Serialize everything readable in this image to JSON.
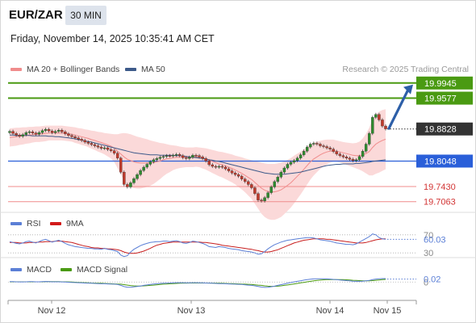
{
  "header": {
    "symbol": "EUR/ZAR",
    "timeframe": "30 MIN",
    "datetime": "Friday, November 14, 2025 10:35:41 AM CET"
  },
  "legend": {
    "ma20_bb": "MA 20 + Bollinger Bands",
    "ma50": "MA 50",
    "research": "Research © 2025 Trading Central",
    "rsi": "RSI",
    "rsi_ma": "9MA",
    "macd": "MACD",
    "macd_signal": "MACD Signal"
  },
  "colors": {
    "green": "#4a9a12",
    "blue": "#2a5fd9",
    "salmon": "#f08c8c",
    "band": "#fbd9d9",
    "ma50": "#3d5a8a",
    "candle_up": "#2e8b2e",
    "candle_down": "#c0392b",
    "current": "#333333",
    "arrow": "#2d5fa8"
  },
  "chart_data": [
    {
      "type": "candlestick",
      "title": "EUR/ZAR 30 MIN",
      "x_ticks": [
        "Nov 12",
        "Nov 13",
        "Nov 14",
        "Nov 15"
      ],
      "ylim": [
        19.69,
        20.0
      ],
      "current_price": "19.8828",
      "levels": [
        {
          "label": "19.9945",
          "value": 19.9945,
          "kind": "resistance"
        },
        {
          "label": "19.9577",
          "value": 19.9577,
          "kind": "resistance"
        },
        {
          "label": "19.8048",
          "value": 19.8048,
          "kind": "pivot"
        },
        {
          "label": "19.7430",
          "value": 19.743,
          "kind": "support"
        },
        {
          "label": "19.7063",
          "value": 19.7063,
          "kind": "support"
        }
      ],
      "close": [
        19.877,
        19.872,
        19.868,
        19.865,
        19.869,
        19.874,
        19.876,
        19.873,
        19.87,
        19.874,
        19.879,
        19.882,
        19.878,
        19.874,
        19.877,
        19.88,
        19.876,
        19.871,
        19.867,
        19.864,
        19.861,
        19.858,
        19.855,
        19.851,
        19.848,
        19.845,
        19.842,
        19.839,
        19.836,
        19.837,
        19.833,
        19.83,
        19.824,
        19.812,
        19.778,
        19.748,
        19.742,
        19.752,
        19.762,
        19.772,
        19.782,
        19.79,
        19.797,
        19.803,
        19.808,
        19.811,
        19.814,
        19.816,
        19.818,
        19.817,
        19.819,
        19.821,
        19.818,
        19.813,
        19.811,
        19.814,
        19.819,
        19.818,
        19.815,
        19.811,
        19.805,
        19.796,
        19.792,
        19.79,
        19.792,
        19.79,
        19.786,
        19.781,
        19.776,
        19.772,
        19.768,
        19.761,
        19.755,
        19.748,
        19.74,
        19.726,
        19.71,
        19.708,
        19.716,
        19.728,
        19.742,
        19.755,
        19.766,
        19.778,
        19.788,
        19.797,
        19.802,
        19.806,
        19.812,
        19.82,
        19.829,
        19.839,
        19.846,
        19.848,
        19.846,
        19.842,
        19.84,
        19.837,
        19.834,
        19.828,
        19.822,
        19.818,
        19.815,
        19.812,
        19.809,
        19.806,
        19.808,
        19.816,
        19.829,
        19.846,
        19.872,
        19.911,
        19.918,
        19.905,
        19.89,
        19.883
      ],
      "ma20": [
        19.862,
        19.863,
        19.864,
        19.865,
        19.866,
        19.867,
        19.868,
        19.869,
        19.87,
        19.87,
        19.871,
        19.872,
        19.873,
        19.873,
        19.873,
        19.873,
        19.873,
        19.872,
        19.871,
        19.87,
        19.868,
        19.866,
        19.864,
        19.862,
        19.86,
        19.857,
        19.855,
        19.852,
        19.85,
        19.847,
        19.844,
        19.841,
        19.836,
        19.829,
        19.822,
        19.815,
        19.809,
        19.806,
        19.803,
        19.801,
        19.8,
        19.8,
        19.8,
        19.8,
        19.801,
        19.803,
        19.805,
        19.808,
        19.81,
        19.811,
        19.813,
        19.814,
        19.814,
        19.814,
        19.814,
        19.814,
        19.814,
        19.815,
        19.814,
        19.812,
        19.81,
        19.807,
        19.804,
        19.801,
        19.798,
        19.796,
        19.793,
        19.79,
        19.787,
        19.783,
        19.779,
        19.775,
        19.77,
        19.765,
        19.76,
        19.753,
        19.746,
        19.739,
        19.734,
        19.731,
        19.73,
        19.73,
        19.732,
        19.735,
        19.74,
        19.746,
        19.752,
        19.76,
        19.768,
        19.776,
        19.785,
        19.794,
        19.803,
        19.81,
        19.815,
        19.82,
        19.824,
        19.827,
        19.829,
        19.83,
        19.829,
        19.827,
        19.825,
        19.823,
        19.821,
        19.819,
        19.818,
        19.818,
        19.82,
        19.823,
        19.828,
        19.838,
        19.846,
        19.851,
        19.855,
        19.858
      ],
      "ma50": [
        19.868,
        19.868,
        19.867,
        19.867,
        19.867,
        19.867,
        19.867,
        19.866,
        19.866,
        19.866,
        19.866,
        19.866,
        19.865,
        19.865,
        19.864,
        19.864,
        19.863,
        19.862,
        19.861,
        19.86,
        19.859,
        19.857,
        19.856,
        19.854,
        19.852,
        19.851,
        19.849,
        19.847,
        19.845,
        19.843,
        19.841,
        19.839,
        19.837,
        19.835,
        19.833,
        19.831,
        19.829,
        19.827,
        19.825,
        19.824,
        19.823,
        19.822,
        19.821,
        19.82,
        19.82,
        19.82,
        19.819,
        19.819,
        19.819,
        19.819,
        19.819,
        19.818,
        19.818,
        19.817,
        19.816,
        19.815,
        19.814,
        19.813,
        19.812,
        19.811,
        19.81,
        19.808,
        19.807,
        19.805,
        19.804,
        19.802,
        19.8,
        19.798,
        19.796,
        19.794,
        19.792,
        19.79,
        19.788,
        19.786,
        19.784,
        19.782,
        19.78,
        19.778,
        19.776,
        19.775,
        19.774,
        19.773,
        19.773,
        19.773,
        19.773,
        19.774,
        19.775,
        19.776,
        19.777,
        19.778,
        19.78,
        19.782,
        19.784,
        19.786,
        19.788,
        19.79,
        19.792,
        19.794,
        19.795,
        19.796,
        19.797,
        19.797,
        19.798,
        19.798,
        19.798,
        19.798,
        19.799,
        19.799,
        19.8,
        19.801,
        19.802,
        19.804,
        19.805,
        19.806,
        19.807,
        19.808
      ],
      "bb_width": [
        0.022,
        0.022,
        0.022,
        0.021,
        0.021,
        0.02,
        0.02,
        0.019,
        0.019,
        0.019,
        0.019,
        0.019,
        0.018,
        0.018,
        0.018,
        0.018,
        0.018,
        0.018,
        0.018,
        0.018,
        0.019,
        0.019,
        0.02,
        0.02,
        0.021,
        0.022,
        0.023,
        0.024,
        0.025,
        0.026,
        0.028,
        0.03,
        0.034,
        0.041,
        0.05,
        0.058,
        0.063,
        0.064,
        0.064,
        0.063,
        0.062,
        0.06,
        0.058,
        0.055,
        0.052,
        0.048,
        0.044,
        0.04,
        0.036,
        0.033,
        0.03,
        0.028,
        0.026,
        0.025,
        0.024,
        0.024,
        0.024,
        0.024,
        0.024,
        0.025,
        0.026,
        0.027,
        0.028,
        0.029,
        0.03,
        0.031,
        0.032,
        0.033,
        0.034,
        0.035,
        0.037,
        0.039,
        0.041,
        0.044,
        0.047,
        0.052,
        0.057,
        0.062,
        0.065,
        0.067,
        0.068,
        0.068,
        0.067,
        0.066,
        0.064,
        0.062,
        0.06,
        0.058,
        0.055,
        0.052,
        0.049,
        0.046,
        0.043,
        0.04,
        0.037,
        0.034,
        0.032,
        0.03,
        0.028,
        0.027,
        0.026,
        0.026,
        0.026,
        0.027,
        0.028,
        0.029,
        0.031,
        0.034,
        0.04,
        0.048,
        0.058,
        0.068,
        0.072,
        0.074,
        0.074,
        0.073
      ],
      "forecast_target": 19.9945
    },
    {
      "type": "line",
      "title": "RSI",
      "ylim": [
        25,
        75
      ],
      "ticks": [
        {
          "label": "70",
          "value": 70
        },
        {
          "label": "30",
          "value": 30
        }
      ],
      "current_label": "60.03",
      "current_value": 60.03,
      "series": [
        {
          "name": "RSI",
          "values": [
            55,
            53,
            51,
            50,
            52,
            55,
            56,
            54,
            52,
            55,
            58,
            60,
            57,
            54,
            56,
            58,
            55,
            51,
            48,
            46,
            44,
            43,
            42,
            41,
            40,
            40,
            39,
            39,
            38,
            40,
            38,
            37,
            35,
            33,
            25,
            22,
            24,
            32,
            38,
            42,
            46,
            49,
            51,
            53,
            54,
            55,
            55,
            56,
            56,
            55,
            56,
            57,
            55,
            52,
            51,
            53,
            56,
            55,
            53,
            51,
            48,
            44,
            43,
            42,
            44,
            43,
            42,
            40,
            39,
            38,
            37,
            35,
            34,
            33,
            32,
            30,
            27,
            28,
            33,
            39,
            44,
            48,
            51,
            54,
            56,
            58,
            59,
            60,
            61,
            62,
            63,
            64,
            64,
            63,
            61,
            59,
            58,
            57,
            56,
            54,
            52,
            51,
            50,
            49,
            49,
            48,
            50,
            54,
            58,
            62,
            66,
            72,
            70,
            64,
            61,
            60
          ]
        },
        {
          "name": "9MA",
          "values": [
            53,
            53,
            53,
            52,
            52,
            52,
            53,
            53,
            53,
            54,
            54,
            55,
            55,
            55,
            56,
            56,
            56,
            55,
            54,
            53,
            51,
            49,
            47,
            45,
            44,
            42,
            41,
            41,
            40,
            40,
            39,
            39,
            38,
            37,
            35,
            32,
            30,
            29,
            29,
            30,
            32,
            34,
            37,
            40,
            44,
            47,
            49,
            51,
            52,
            53,
            54,
            54,
            54,
            54,
            54,
            54,
            54,
            54,
            54,
            53,
            53,
            52,
            51,
            50,
            49,
            47,
            46,
            45,
            44,
            43,
            42,
            41,
            40,
            39,
            38,
            36,
            35,
            33,
            32,
            32,
            33,
            35,
            37,
            40,
            43,
            46,
            49,
            52,
            54,
            56,
            58,
            59,
            60,
            61,
            61,
            61,
            61,
            60,
            60,
            59,
            58,
            57,
            56,
            55,
            54,
            53,
            52,
            52,
            52,
            53,
            55,
            57,
            59,
            60,
            61,
            61
          ]
        }
      ]
    },
    {
      "type": "line",
      "title": "MACD",
      "ylim": [
        -0.1,
        0.05
      ],
      "ticks": [
        {
          "label": "0",
          "value": 0
        }
      ],
      "current_label": "0.02",
      "current_value": 0.02,
      "series": [
        {
          "name": "MACD",
          "values": [
            0.003,
            0.003,
            0.002,
            0.001,
            0.001,
            0.002,
            0.003,
            0.003,
            0.002,
            0.002,
            0.003,
            0.004,
            0.003,
            0.002,
            0.002,
            0.002,
            0.001,
            0.0,
            -0.001,
            -0.002,
            -0.003,
            -0.004,
            -0.005,
            -0.006,
            -0.007,
            -0.008,
            -0.009,
            -0.01,
            -0.011,
            -0.011,
            -0.012,
            -0.013,
            -0.014,
            -0.016,
            -0.022,
            -0.03,
            -0.034,
            -0.034,
            -0.032,
            -0.029,
            -0.026,
            -0.022,
            -0.019,
            -0.016,
            -0.013,
            -0.011,
            -0.009,
            -0.008,
            -0.007,
            -0.006,
            -0.005,
            -0.004,
            -0.004,
            -0.004,
            -0.005,
            -0.005,
            -0.004,
            -0.004,
            -0.005,
            -0.005,
            -0.006,
            -0.007,
            -0.008,
            -0.009,
            -0.01,
            -0.01,
            -0.011,
            -0.012,
            -0.013,
            -0.014,
            -0.015,
            -0.016,
            -0.018,
            -0.02,
            -0.022,
            -0.025,
            -0.029,
            -0.033,
            -0.035,
            -0.034,
            -0.031,
            -0.027,
            -0.022,
            -0.017,
            -0.012,
            -0.007,
            -0.003,
            0.001,
            0.005,
            0.009,
            0.013,
            0.016,
            0.019,
            0.021,
            0.022,
            0.022,
            0.022,
            0.021,
            0.02,
            0.018,
            0.016,
            0.014,
            0.012,
            0.01,
            0.008,
            0.006,
            0.005,
            0.005,
            0.006,
            0.008,
            0.011,
            0.016,
            0.02,
            0.022,
            0.023,
            0.023
          ]
        },
        {
          "name": "MACD Signal",
          "values": [
            0.002,
            0.002,
            0.002,
            0.002,
            0.002,
            0.002,
            0.002,
            0.002,
            0.002,
            0.002,
            0.002,
            0.003,
            0.003,
            0.003,
            0.003,
            0.003,
            0.002,
            0.002,
            0.001,
            0.0,
            -0.001,
            -0.002,
            -0.003,
            -0.004,
            -0.005,
            -0.006,
            -0.007,
            -0.008,
            -0.008,
            -0.009,
            -0.01,
            -0.011,
            -0.012,
            -0.013,
            -0.014,
            -0.017,
            -0.02,
            -0.023,
            -0.025,
            -0.026,
            -0.026,
            -0.025,
            -0.024,
            -0.022,
            -0.02,
            -0.018,
            -0.016,
            -0.014,
            -0.013,
            -0.011,
            -0.01,
            -0.009,
            -0.008,
            -0.007,
            -0.007,
            -0.006,
            -0.006,
            -0.006,
            -0.006,
            -0.006,
            -0.006,
            -0.006,
            -0.007,
            -0.007,
            -0.008,
            -0.008,
            -0.009,
            -0.01,
            -0.01,
            -0.011,
            -0.012,
            -0.013,
            -0.014,
            -0.015,
            -0.016,
            -0.018,
            -0.02,
            -0.022,
            -0.025,
            -0.027,
            -0.028,
            -0.028,
            -0.027,
            -0.025,
            -0.022,
            -0.019,
            -0.016,
            -0.012,
            -0.009,
            -0.005,
            -0.002,
            0.002,
            0.005,
            0.008,
            0.011,
            0.013,
            0.015,
            0.016,
            0.017,
            0.017,
            0.017,
            0.017,
            0.016,
            0.015,
            0.014,
            0.012,
            0.011,
            0.01,
            0.009,
            0.009,
            0.009,
            0.01,
            0.012,
            0.014,
            0.016,
            0.018
          ]
        }
      ]
    }
  ]
}
